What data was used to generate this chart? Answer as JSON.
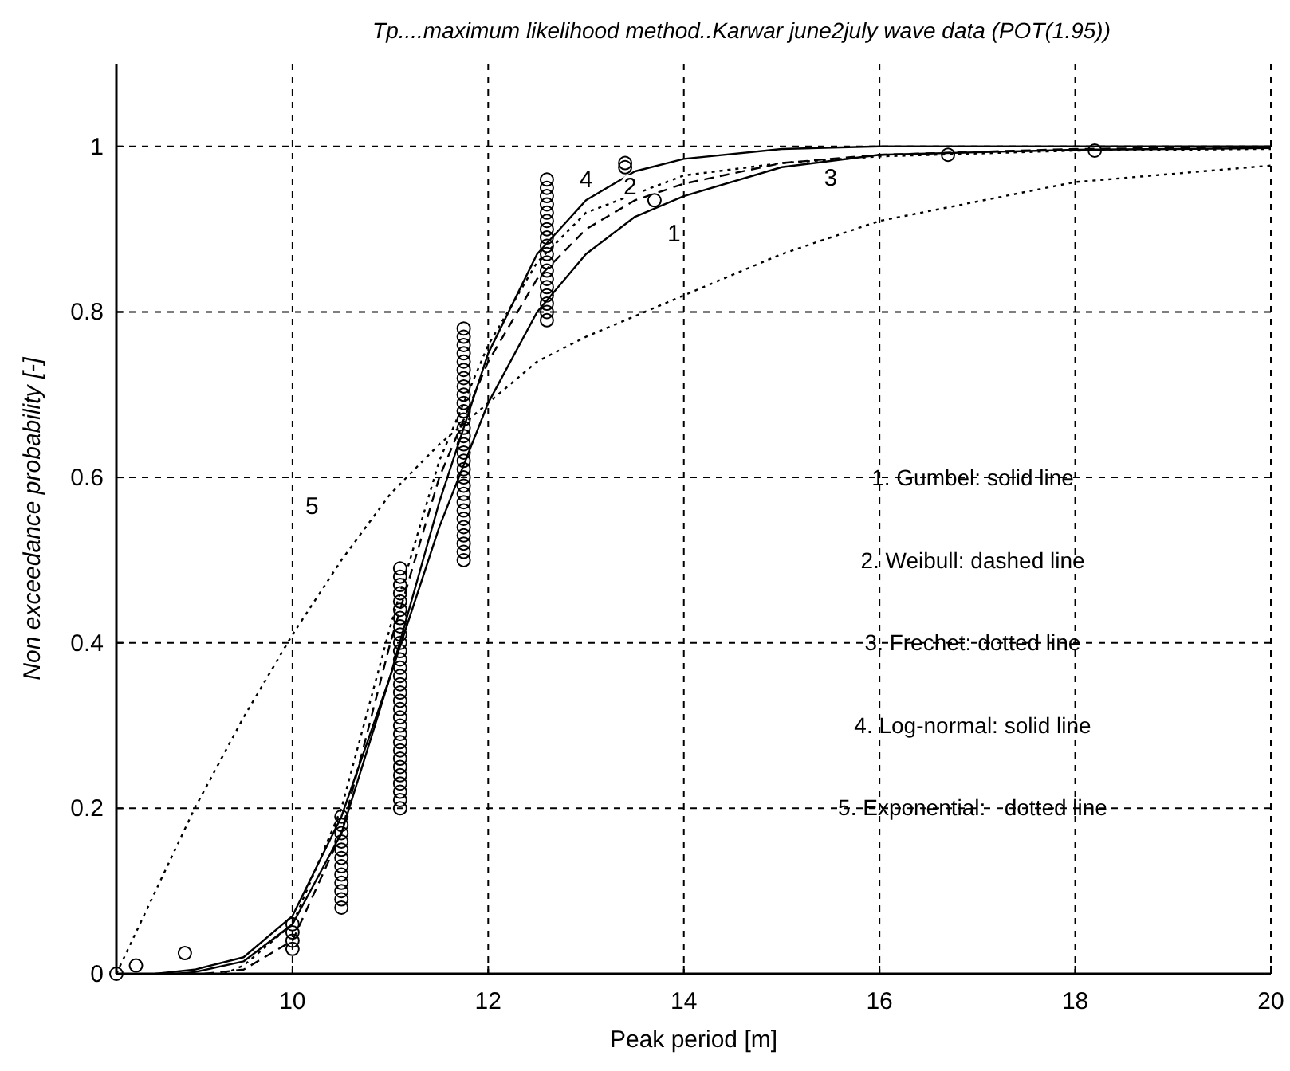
{
  "chart_data": {
    "type": "line",
    "title": "Tp....maximum likelihood method..Karwar june2july wave data (POT(1.95))",
    "xlabel": "Peak period [m]",
    "ylabel": "Non exceedance probability [-]",
    "xlim": [
      8.2,
      20
    ],
    "ylim": [
      0,
      1.1
    ],
    "xticks": [
      10,
      12,
      14,
      16,
      18,
      20
    ],
    "yticks": [
      0,
      0.2,
      0.4,
      0.6,
      0.8,
      1
    ],
    "grid": true,
    "series": [
      {
        "type": "scatter",
        "marker": "circle",
        "color": "#000000",
        "x": [
          8.2,
          8.4,
          8.9,
          10,
          10,
          10,
          10,
          10.5,
          10.5,
          10.5,
          10.5,
          10.5,
          10.5,
          10.5,
          10.5,
          10.5,
          10.5,
          10.5,
          10.5,
          11.1,
          11.1,
          11.1,
          11.1,
          11.1,
          11.1,
          11.1,
          11.1,
          11.1,
          11.1,
          11.1,
          11.1,
          11.1,
          11.1,
          11.1,
          11.1,
          11.1,
          11.1,
          11.1,
          11.1,
          11.1,
          11.1,
          11.1,
          11.1,
          11.1,
          11.1,
          11.1,
          11.1,
          11.1,
          11.1,
          11.75,
          11.75,
          11.75,
          11.75,
          11.75,
          11.75,
          11.75,
          11.75,
          11.75,
          11.75,
          11.75,
          11.75,
          11.75,
          11.75,
          11.75,
          11.75,
          11.75,
          11.75,
          11.75,
          11.75,
          11.75,
          11.75,
          11.75,
          11.75,
          11.75,
          11.75,
          11.75,
          11.75,
          11.75,
          12.6,
          12.6,
          12.6,
          12.6,
          12.6,
          12.6,
          12.6,
          12.6,
          12.6,
          12.6,
          12.6,
          12.6,
          12.6,
          12.6,
          12.6,
          12.6,
          12.6,
          12.6,
          13.4,
          13.4,
          13.7,
          16.7,
          18.2
        ],
        "values": [
          0,
          0.01,
          0.025,
          0.03,
          0.04,
          0.05,
          0.06,
          0.08,
          0.09,
          0.1,
          0.11,
          0.12,
          0.13,
          0.14,
          0.15,
          0.16,
          0.17,
          0.18,
          0.19,
          0.2,
          0.21,
          0.22,
          0.23,
          0.24,
          0.25,
          0.26,
          0.27,
          0.28,
          0.29,
          0.3,
          0.31,
          0.32,
          0.33,
          0.34,
          0.35,
          0.36,
          0.37,
          0.38,
          0.39,
          0.4,
          0.41,
          0.42,
          0.43,
          0.44,
          0.45,
          0.46,
          0.47,
          0.48,
          0.49,
          0.5,
          0.51,
          0.52,
          0.53,
          0.54,
          0.55,
          0.56,
          0.57,
          0.58,
          0.59,
          0.6,
          0.61,
          0.62,
          0.63,
          0.64,
          0.65,
          0.66,
          0.67,
          0.68,
          0.69,
          0.7,
          0.71,
          0.72,
          0.73,
          0.74,
          0.75,
          0.76,
          0.77,
          0.78,
          0.79,
          0.8,
          0.81,
          0.82,
          0.83,
          0.84,
          0.85,
          0.86,
          0.87,
          0.88,
          0.89,
          0.9,
          0.91,
          0.92,
          0.93,
          0.94,
          0.95,
          0.96,
          0.975,
          0.98,
          0.935,
          0.99,
          0.995
        ]
      },
      {
        "name": "1",
        "line_style": "solid",
        "color": "#000000",
        "x": [
          8.6,
          9,
          9.5,
          10,
          10.5,
          11,
          11.5,
          12,
          12.5,
          13,
          13.5,
          14,
          15,
          16,
          18,
          20
        ],
        "values": [
          0,
          0.005,
          0.02,
          0.07,
          0.19,
          0.36,
          0.54,
          0.69,
          0.8,
          0.87,
          0.915,
          0.94,
          0.975,
          0.99,
          0.996,
          0.998
        ]
      },
      {
        "name": "2",
        "line_style": "dashed",
        "color": "#000000",
        "x": [
          9.1,
          9.5,
          10,
          10.5,
          11,
          11.5,
          12,
          12.5,
          13,
          13.5,
          14,
          15,
          16,
          18,
          20
        ],
        "values": [
          0,
          0.005,
          0.04,
          0.17,
          0.4,
          0.6,
          0.74,
          0.84,
          0.9,
          0.935,
          0.955,
          0.98,
          0.99,
          0.997,
          0.999
        ]
      },
      {
        "name": "3",
        "line_style": "dotted",
        "color": "#000000",
        "x": [
          9.3,
          9.5,
          10,
          10.5,
          11,
          11.5,
          12,
          12.5,
          13,
          14,
          15,
          16,
          18,
          20
        ],
        "values": [
          0,
          0.01,
          0.06,
          0.2,
          0.42,
          0.62,
          0.76,
          0.86,
          0.92,
          0.965,
          0.98,
          0.988,
          0.995,
          0.997
        ]
      },
      {
        "name": "4",
        "line_style": "solid",
        "color": "#000000",
        "x": [
          8.8,
          9,
          9.5,
          10,
          10.5,
          11,
          11.5,
          12,
          12.5,
          13,
          13.5,
          14,
          15,
          16,
          20
        ],
        "values": [
          0,
          0.002,
          0.015,
          0.06,
          0.17,
          0.36,
          0.57,
          0.75,
          0.87,
          0.935,
          0.97,
          0.985,
          0.997,
          1,
          1
        ]
      },
      {
        "name": "5",
        "line_style": "dotted",
        "color": "#000000",
        "x": [
          8.2,
          8.6,
          9,
          9.5,
          10,
          10.5,
          11,
          11.5,
          12,
          12.5,
          13,
          14,
          15,
          16,
          18,
          20
        ],
        "values": [
          0,
          0.1,
          0.2,
          0.31,
          0.41,
          0.5,
          0.58,
          0.64,
          0.69,
          0.74,
          0.77,
          0.82,
          0.87,
          0.91,
          0.957,
          0.977
        ]
      }
    ],
    "annotations": [
      "1. Gumbel: solid line",
      "2. Weibull: dashed line",
      "3. Frechet: dotted line",
      "4. Log-normal: solid line",
      "5. Exponential:   dotted line"
    ]
  }
}
